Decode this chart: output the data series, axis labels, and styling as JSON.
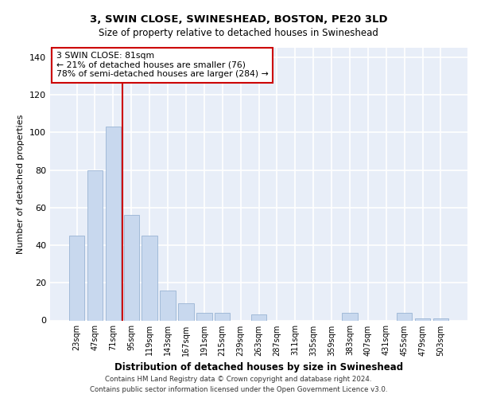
{
  "title_line1": "3, SWIN CLOSE, SWINESHEAD, BOSTON, PE20 3LD",
  "title_line2": "Size of property relative to detached houses in Swineshead",
  "xlabel": "Distribution of detached houses by size in Swineshead",
  "ylabel": "Number of detached properties",
  "footer_line1": "Contains HM Land Registry data © Crown copyright and database right 2024.",
  "footer_line2": "Contains public sector information licensed under the Open Government Licence v3.0.",
  "bar_color": "#c8d8ee",
  "bar_edge_color": "#9ab4d4",
  "background_color": "#e8eef8",
  "grid_color": "#ffffff",
  "annotation_box_color": "#cc0000",
  "annotation_line_color": "#cc0000",
  "categories": [
    "23sqm",
    "47sqm",
    "71sqm",
    "95sqm",
    "119sqm",
    "143sqm",
    "167sqm",
    "191sqm",
    "215sqm",
    "239sqm",
    "263sqm",
    "287sqm",
    "311sqm",
    "335sqm",
    "359sqm",
    "383sqm",
    "407sqm",
    "431sqm",
    "455sqm",
    "479sqm",
    "503sqm"
  ],
  "values": [
    45,
    80,
    103,
    56,
    45,
    16,
    9,
    4,
    4,
    0,
    3,
    0,
    0,
    0,
    0,
    4,
    0,
    0,
    4,
    1,
    1
  ],
  "ylim": [
    0,
    145
  ],
  "yticks": [
    0,
    20,
    40,
    60,
    80,
    100,
    120,
    140
  ],
  "annotation_text_line1": "3 SWIN CLOSE: 81sqm",
  "annotation_text_line2": "← 21% of detached houses are smaller (76)",
  "annotation_text_line3": "78% of semi-detached houses are larger (284) →",
  "vline_x": 2.5
}
